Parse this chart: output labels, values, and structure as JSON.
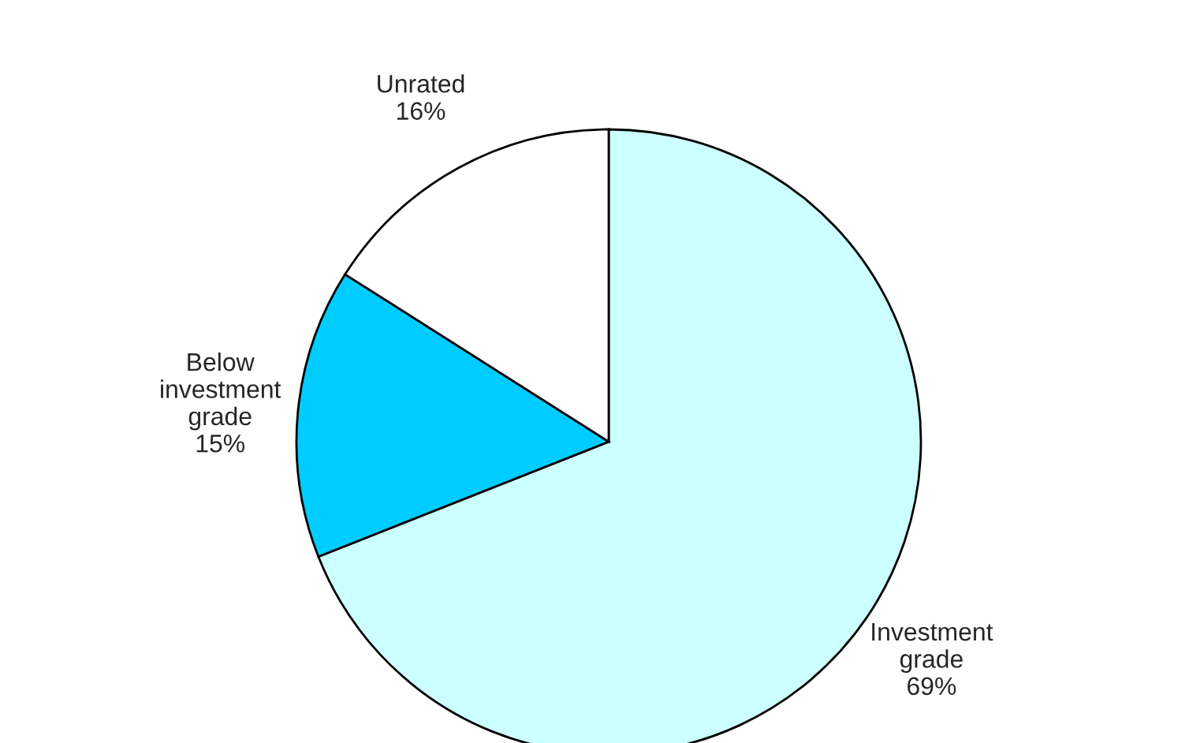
{
  "chart_data": {
    "type": "pie",
    "categories": [
      "Investment\ngrade",
      "Below\ninvestment\ngrade",
      "Unrated"
    ],
    "values": [
      69,
      15,
      16
    ],
    "value_labels": [
      "69%",
      "15%",
      "16%"
    ],
    "colors": [
      "#ccffff",
      "#00ccff",
      "#ffffff"
    ]
  }
}
